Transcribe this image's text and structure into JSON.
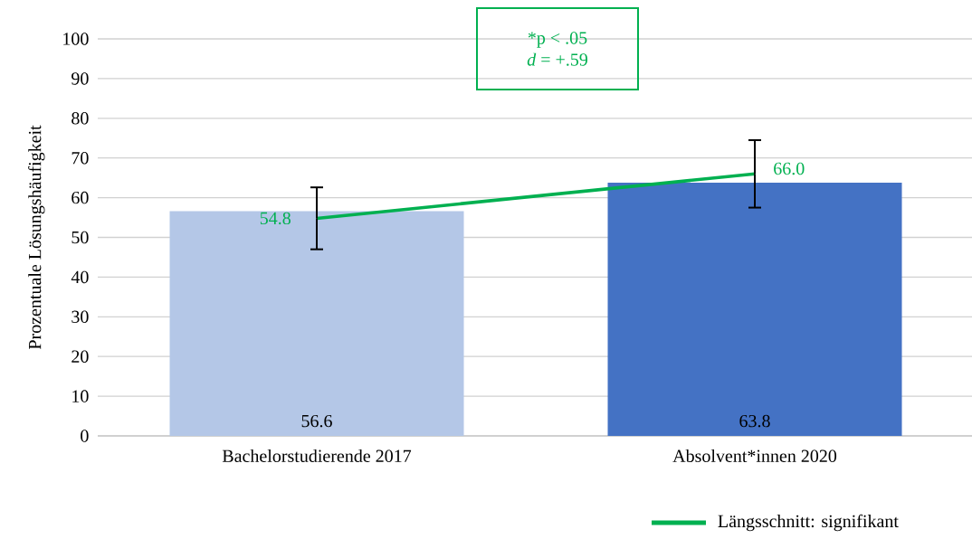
{
  "chart_data": {
    "type": "bar",
    "ylabel": "Prozentuale Lösungshäufigkeit",
    "categories": [
      "Bachelorstudierende 2017",
      "Absolvent*innen 2020"
    ],
    "series": [
      {
        "colors": [
          "#b4c7e7",
          "#4472c4"
        ],
        "values": [
          56.6,
          63.8
        ],
        "value_labels": [
          "56.6",
          "63.8"
        ]
      },
      {
        "type": "line",
        "name": "Längsschnitt: signifikant",
        "color": "#00b050",
        "values": [
          54.8,
          66.0
        ],
        "value_labels": [
          "54.8",
          "66.0"
        ],
        "errors": [
          7.8,
          8.5
        ]
      }
    ],
    "ylim": [
      0,
      100
    ],
    "yticks": [
      0,
      10,
      20,
      30,
      40,
      50,
      60,
      70,
      80,
      90,
      100
    ],
    "grid": "y",
    "legend": "bottom right",
    "marker": "none",
    "annotations": [
      "*p < .05",
      "*d* = +.59"
    ]
  }
}
